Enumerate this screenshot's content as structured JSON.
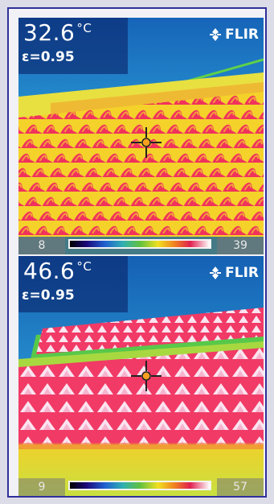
{
  "images": [
    {
      "temperature": "32.6",
      "unit": "°C",
      "emissivity": "ε=0.95",
      "brand": "FLIR",
      "brand_icon": "flir-logo-icon",
      "scale_min": "8",
      "scale_max": "39",
      "scene": "warm roof tiles, mostly yellow-orange"
    },
    {
      "temperature": "46.6",
      "unit": "°C",
      "emissivity": "ε=0.95",
      "brand": "FLIR",
      "brand_icon": "flir-logo-icon",
      "scale_min": "9",
      "scale_max": "57",
      "scene": "hot roof tiles, pink-white with yellow foreground"
    }
  ],
  "colors": {
    "sky": "#1b7fc4",
    "frame_border": "#2f2f9a",
    "tile_hot": "#f03060",
    "tile_warm": "#f0e020",
    "tile_white": "#fbe6f2"
  }
}
